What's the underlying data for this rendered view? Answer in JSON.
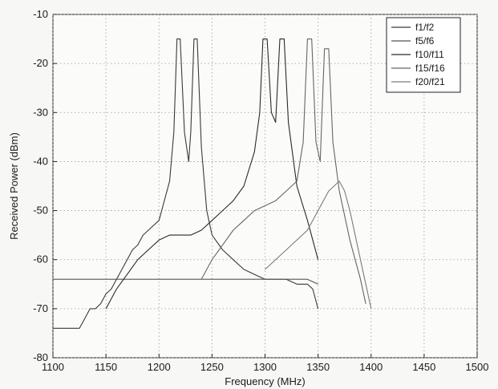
{
  "chart_data": {
    "type": "line",
    "title": "",
    "xlabel": "Frequency (MHz)",
    "ylabel": "Received Power (dBm)",
    "xlim": [
      1100,
      1500
    ],
    "ylim": [
      -80,
      -10
    ],
    "xticks": [
      1100,
      1150,
      1200,
      1250,
      1300,
      1350,
      1400,
      1450,
      1500
    ],
    "yticks": [
      -10,
      -20,
      -30,
      -40,
      -50,
      -60,
      -70,
      -80
    ],
    "xtick_labels": [
      "1100",
      "1150",
      "1200",
      "1250",
      "1300",
      "1350",
      "1400",
      "1450",
      "1500"
    ],
    "ytick_labels": [
      "-10",
      "-20",
      "-30",
      "-40",
      "-50",
      "-60",
      "-70",
      "-80"
    ],
    "grid": true,
    "legend_position": "top-right",
    "series": [
      {
        "name": "f1/f2",
        "color": "#3a3a3a",
        "x": [
          1100,
          1110,
          1120,
          1125,
          1130,
          1135,
          1140,
          1145,
          1150,
          1155,
          1160,
          1165,
          1170,
          1175,
          1180,
          1185,
          1190,
          1195,
          1200,
          1205,
          1210,
          1214,
          1217,
          1220,
          1224,
          1228,
          1230,
          1233,
          1236,
          1240,
          1245,
          1250,
          1260,
          1270,
          1280,
          1290,
          1300,
          1310,
          1320,
          1330,
          1340,
          1345,
          1350
        ],
        "y": [
          -74,
          -74,
          -74,
          -74,
          -72,
          -70,
          -70,
          -69,
          -67,
          -66,
          -64,
          -62,
          -60,
          -58,
          -57,
          -55,
          -54,
          -53,
          -52,
          -48,
          -44,
          -34,
          -15,
          -15,
          -34,
          -40,
          -34,
          -15,
          -15,
          -37,
          -50,
          -55,
          -58,
          -60,
          -62,
          -63,
          -64,
          -64,
          -64,
          -65,
          -65,
          -66,
          -70
        ]
      },
      {
        "name": "f5/f6",
        "color": "#555555",
        "x": [
          1100,
          1120,
          1140,
          1160,
          1180,
          1200,
          1220,
          1240,
          1260,
          1280,
          1300,
          1320,
          1340,
          1350
        ],
        "y": [
          -64,
          -64,
          -64,
          -64,
          -64,
          -64,
          -64,
          -64,
          -64,
          -64,
          -64,
          -64,
          -64,
          -65
        ]
      },
      {
        "name": "f10/f11",
        "color": "#2a2a2a",
        "x": [
          1150,
          1160,
          1170,
          1180,
          1190,
          1200,
          1210,
          1220,
          1230,
          1240,
          1250,
          1260,
          1270,
          1280,
          1290,
          1295,
          1298,
          1302,
          1306,
          1310,
          1314,
          1318,
          1322,
          1330,
          1340,
          1350
        ],
        "y": [
          -70,
          -66,
          -63,
          -60,
          -58,
          -56,
          -55,
          -55,
          -55,
          -54,
          -52,
          -50,
          -48,
          -45,
          -38,
          -30,
          -15,
          -15,
          -30,
          -32,
          -15,
          -15,
          -32,
          -45,
          -52,
          -60
        ]
      },
      {
        "name": "f15/f16",
        "color": "#666666",
        "x": [
          1240,
          1250,
          1260,
          1270,
          1280,
          1290,
          1300,
          1310,
          1320,
          1330,
          1336,
          1340,
          1344,
          1348,
          1352,
          1356,
          1360,
          1364,
          1370,
          1380,
          1390,
          1395
        ],
        "y": [
          -64,
          -60,
          -57,
          -54,
          -52,
          -50,
          -49,
          -48,
          -46,
          -44,
          -36,
          -15,
          -15,
          -36,
          -40,
          -17,
          -17,
          -36,
          -46,
          -56,
          -64,
          -69
        ]
      },
      {
        "name": "f20/f21",
        "color": "#7a7a7a",
        "x": [
          1300,
          1320,
          1340,
          1350,
          1360,
          1370,
          1375,
          1380,
          1385,
          1390,
          1395,
          1400
        ],
        "y": [
          -62,
          -58,
          -54,
          -50,
          -46,
          -44,
          -46,
          -50,
          -55,
          -60,
          -65,
          -70
        ]
      }
    ]
  }
}
